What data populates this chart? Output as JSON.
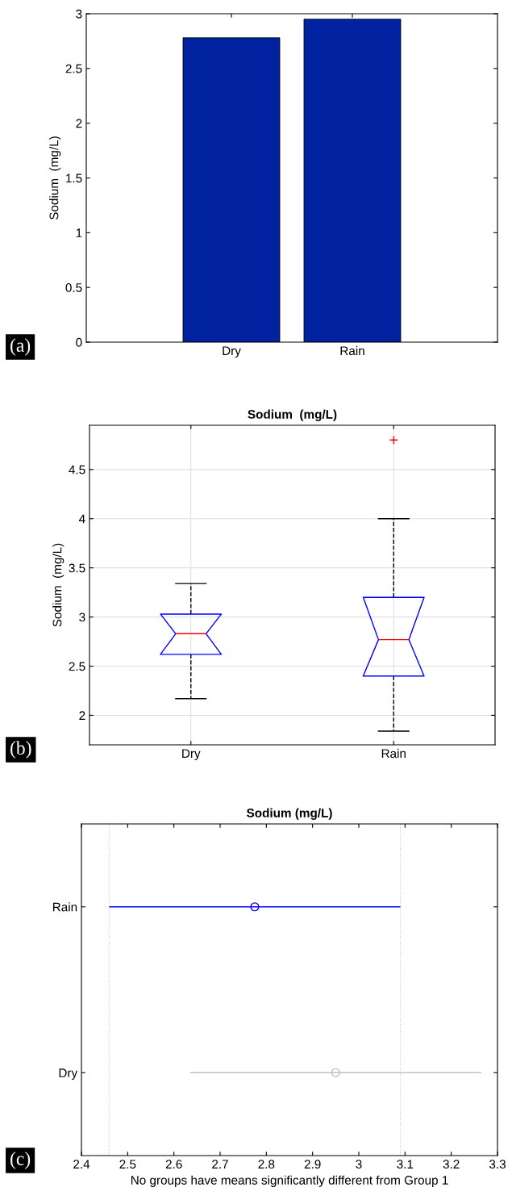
{
  "chart_data": [
    {
      "type": "bar",
      "categories": [
        "Dry",
        "Rain"
      ],
      "values": [
        2.78,
        2.95
      ],
      "color": "#0022a0",
      "ylabel": "Sodium  (mg/L)",
      "ylim": [
        0,
        3
      ],
      "yticks": [
        0,
        0.5,
        1,
        1.5,
        2,
        2.5,
        3
      ],
      "annotations": [
        "(a)"
      ]
    },
    {
      "type": "box",
      "title": "Sodium  (mg/L)",
      "ylabel": "Sodium  (mg/L)",
      "categories": [
        "Dry",
        "Rain"
      ],
      "color": "#0000ff",
      "ylim": [
        1.7,
        4.95
      ],
      "yticks": [
        2,
        2.5,
        3,
        3.5,
        4,
        4.5
      ],
      "grid": true,
      "boxes": [
        {
          "low": 2.17,
          "q1": 2.62,
          "median": 2.83,
          "q3": 3.03,
          "high": 3.34
        },
        {
          "low": 1.84,
          "q1": 2.4,
          "median": 2.77,
          "q3": 3.2,
          "high": 4.0,
          "outliers": [
            4.8
          ]
        }
      ],
      "annotations": [
        "(b)"
      ]
    },
    {
      "type": "scatter",
      "orientation": "horizontal",
      "title": "Sodium (mg/L)",
      "xlabel": "No groups have means significantly different from Group 1",
      "categories": [
        "Rain",
        "Dry"
      ],
      "values": [
        2.775,
        2.95
      ],
      "errors": [
        0.315,
        0.315
      ],
      "colors": [
        "#0000ff",
        "#c0c0c0"
      ],
      "marker": "circle",
      "xlim": [
        2.4,
        3.3
      ],
      "xticks": [
        2.4,
        2.5,
        2.6,
        2.7,
        2.8,
        2.9,
        3,
        3.1,
        3.2,
        3.3
      ],
      "ref_lines": [
        {
          "axis": "x",
          "value": 2.46,
          "color": "#c8c8c8",
          "line_style": "dotted"
        },
        {
          "axis": "x",
          "value": 3.09,
          "color": "#c8c8c8",
          "line_style": "dotted"
        }
      ],
      "annotations": [
        "(c)"
      ]
    }
  ]
}
